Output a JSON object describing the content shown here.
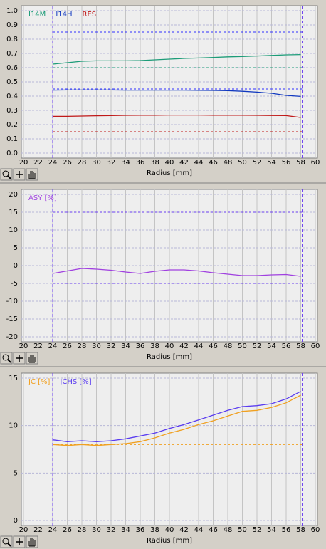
{
  "chart_data": [
    {
      "type": "line",
      "xlabel": "Radius [mm]",
      "x": [
        24,
        26,
        28,
        30,
        32,
        34,
        36,
        38,
        40,
        42,
        44,
        46,
        48,
        50,
        52,
        54,
        56,
        58
      ],
      "series": [
        {
          "name": "I14M",
          "color": "#1c9c78",
          "values": [
            0.625,
            0.635,
            0.645,
            0.648,
            0.648,
            0.648,
            0.65,
            0.655,
            0.66,
            0.665,
            0.668,
            0.672,
            0.676,
            0.678,
            0.682,
            0.686,
            0.69,
            0.692
          ]
        },
        {
          "name": "I14H",
          "color": "#1038c0",
          "values": [
            0.442,
            0.443,
            0.443,
            0.443,
            0.443,
            0.442,
            0.442,
            0.442,
            0.442,
            0.442,
            0.441,
            0.44,
            0.438,
            0.434,
            0.428,
            0.42,
            0.405,
            0.398
          ]
        },
        {
          "name": "RES",
          "color": "#c01818",
          "values": [
            0.258,
            0.258,
            0.26,
            0.262,
            0.263,
            0.265,
            0.266,
            0.266,
            0.267,
            0.267,
            0.267,
            0.266,
            0.266,
            0.266,
            0.265,
            0.264,
            0.263,
            0.25
          ]
        }
      ],
      "hlines": [
        {
          "value": 0.85,
          "color": "#3030ff"
        },
        {
          "value": 0.6,
          "color": "#1c9c78"
        },
        {
          "value": 0.45,
          "color": "#3030ff"
        },
        {
          "value": 0.15,
          "color": "#c01818"
        }
      ],
      "vlines": [
        {
          "value": 24,
          "color": "#6a3df0"
        },
        {
          "value": 58.2,
          "color": "#6a3df0"
        }
      ],
      "xlim": [
        20,
        60
      ],
      "xticks": [
        20,
        22,
        24,
        26,
        28,
        30,
        32,
        34,
        36,
        38,
        40,
        42,
        44,
        46,
        48,
        50,
        52,
        54,
        56,
        58,
        60
      ],
      "ylim": [
        0,
        1
      ],
      "yticks": [
        {
          "value": 0,
          "label": "0.0"
        },
        0.1,
        0.2,
        0.3,
        0.4,
        0.5,
        0.6,
        0.7,
        0.8,
        0.9,
        {
          "value": 1,
          "label": "1.0"
        }
      ],
      "grid": true
    },
    {
      "type": "line",
      "xlabel": "Radius [mm]",
      "x": [
        24,
        26,
        28,
        30,
        32,
        34,
        36,
        38,
        40,
        42,
        44,
        46,
        48,
        50,
        52,
        54,
        56,
        58
      ],
      "series": [
        {
          "name": "ASY [%]",
          "color": "#a040e0",
          "values": [
            -2.2,
            -1.5,
            -0.8,
            -1.0,
            -1.3,
            -1.8,
            -2.2,
            -1.6,
            -1.2,
            -1.2,
            -1.5,
            -2.0,
            -2.4,
            -2.8,
            -2.8,
            -2.6,
            -2.5,
            -3.0
          ]
        }
      ],
      "hlines": [
        {
          "value": 15,
          "color": "#6a3df0"
        },
        {
          "value": -5,
          "color": "#6a3df0"
        }
      ],
      "vlines": [
        {
          "value": 24,
          "color": "#6a3df0"
        },
        {
          "value": 58.2,
          "color": "#6a3df0"
        }
      ],
      "xlim": [
        20,
        60
      ],
      "xticks": [
        20,
        22,
        24,
        26,
        28,
        30,
        32,
        34,
        36,
        38,
        40,
        42,
        44,
        46,
        48,
        50,
        52,
        54,
        56,
        58,
        60
      ],
      "ylim": [
        -20,
        20
      ],
      "yticks": [
        -20,
        -15,
        -10,
        -5,
        0,
        5,
        10,
        15,
        20
      ],
      "grid": true
    },
    {
      "type": "line",
      "xlabel": "Radius [mm]",
      "x": [
        24,
        26,
        28,
        30,
        32,
        34,
        36,
        38,
        40,
        42,
        44,
        46,
        48,
        50,
        52,
        54,
        56,
        58
      ],
      "series": [
        {
          "name": "JC [%]",
          "color": "#f0a020",
          "values": [
            8.0,
            7.9,
            8.0,
            7.9,
            8.0,
            8.1,
            8.3,
            8.7,
            9.2,
            9.6,
            10.1,
            10.5,
            11.0,
            11.5,
            11.6,
            11.9,
            12.4,
            13.2
          ]
        },
        {
          "name": "JCHS [%]",
          "color": "#5a3cf0",
          "values": [
            8.5,
            8.3,
            8.4,
            8.3,
            8.4,
            8.6,
            8.9,
            9.2,
            9.7,
            10.1,
            10.6,
            11.1,
            11.6,
            12.0,
            12.1,
            12.3,
            12.8,
            13.6
          ]
        }
      ],
      "hlines": [
        {
          "value": 8,
          "color": "#f0a020"
        }
      ],
      "vlines": [
        {
          "value": 24,
          "color": "#6a3df0"
        },
        {
          "value": 58.2,
          "color": "#6a3df0"
        }
      ],
      "xlim": [
        20,
        60
      ],
      "xticks": [
        20,
        22,
        24,
        26,
        28,
        30,
        32,
        34,
        36,
        38,
        40,
        42,
        44,
        46,
        48,
        50,
        52,
        54,
        56,
        58,
        60
      ],
      "ylim": [
        0,
        15
      ],
      "yticks": [
        0,
        5,
        10,
        15
      ],
      "grid": true
    }
  ]
}
